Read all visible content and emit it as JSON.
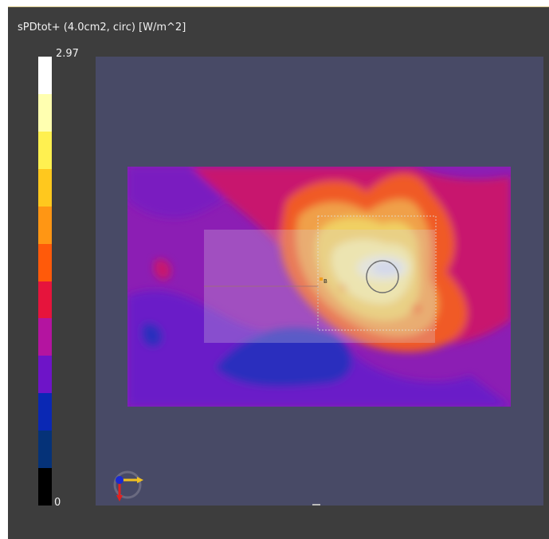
{
  "legend": {
    "title": "sPDtot+ (4.0cm2, circ) [W/m^2]",
    "max_label": "2.97",
    "min_label": "0",
    "scale_colors": [
      "#ffffff",
      "#ffffb0",
      "#fff050",
      "#ffc81e",
      "#ff9614",
      "#ff5a0a",
      "#e6143c",
      "#b414a0",
      "#6e14c8",
      "#0a28b4",
      "#053278",
      "#000000"
    ]
  },
  "view": {
    "background_color": "#484a66",
    "reference_marker_label": "B",
    "orientation_axes": [
      "y-axis-arrow",
      "z-axis-arrow",
      "x-axis-arrow"
    ]
  }
}
